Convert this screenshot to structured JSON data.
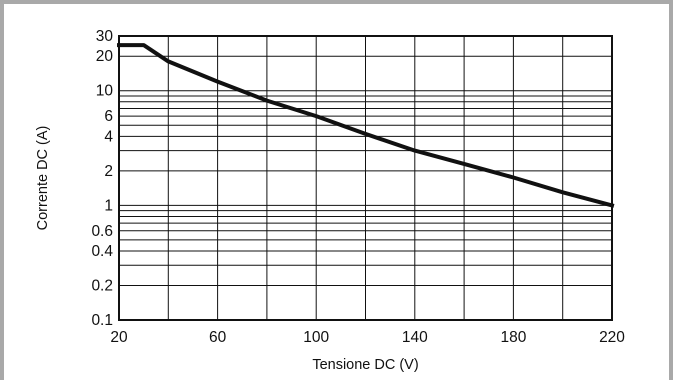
{
  "chart_data": {
    "type": "line",
    "title": "",
    "xlabel": "Tensione DC (V)",
    "ylabel": "Corrente DC (A)",
    "xlim": [
      20,
      220
    ],
    "ylim": [
      0.1,
      30
    ],
    "yscale": "log",
    "grid": true,
    "x_ticks": [
      20,
      60,
      100,
      140,
      180,
      220
    ],
    "x_tick_labels": [
      "20",
      "60",
      "100",
      "140",
      "180",
      "220"
    ],
    "x_grid": [
      20,
      40,
      60,
      80,
      100,
      120,
      140,
      160,
      180,
      200,
      220
    ],
    "y_ticks": [
      0.1,
      0.2,
      0.4,
      0.6,
      1,
      2,
      4,
      6,
      10,
      20,
      30
    ],
    "y_tick_labels": [
      "0.1",
      "0.2",
      "0.4",
      "0.6",
      "1",
      "2",
      "4",
      "6",
      "10",
      "20",
      "30"
    ],
    "y_grid": [
      0.1,
      0.2,
      0.3,
      0.4,
      0.5,
      0.6,
      0.7,
      0.8,
      0.9,
      1,
      2,
      3,
      4,
      5,
      6,
      7,
      8,
      9,
      10,
      20,
      30
    ],
    "series": [
      {
        "x": [
          20,
          30,
          40,
          60,
          80,
          100,
          120,
          140,
          160,
          180,
          200,
          220
        ],
        "y": [
          25,
          25,
          18,
          12,
          8.2,
          6,
          4.2,
          3,
          2.3,
          1.75,
          1.3,
          1.0
        ]
      }
    ],
    "line_color": "#111111"
  }
}
